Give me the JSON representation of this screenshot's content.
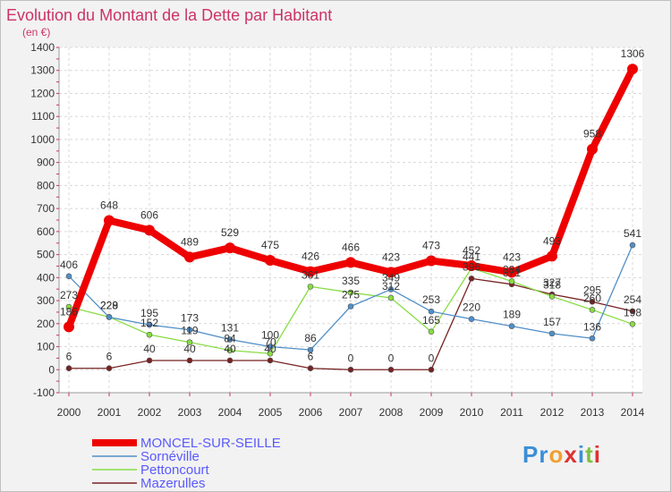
{
  "title": "Evolution du Montant de la Dette par Habitant",
  "subtitle": "(en €)",
  "watermark": "Proxiti",
  "chart_data": {
    "type": "line",
    "title": "Evolution du Montant de la Dette par Habitant",
    "subtitle": "(en €)",
    "xlabel": "",
    "ylabel": "",
    "x": [
      "2000",
      "2001",
      "2002",
      "2003",
      "2004",
      "2005",
      "2006",
      "2007",
      "2008",
      "2009",
      "2010",
      "2011",
      "2012",
      "2013",
      "2014"
    ],
    "y_ticks": [
      "1400",
      "1300",
      "1200",
      "1100",
      "1000",
      "900",
      "800",
      "700",
      "600",
      "500",
      "400",
      "300",
      "200",
      "100",
      "0",
      "-100"
    ],
    "ylim": [
      -100,
      1400
    ],
    "grid": true,
    "legend_position": "bottom-left",
    "series": [
      {
        "name": "MONCEL-SUR-SEILLE",
        "color": "#ee0000",
        "values": [
          186,
          648,
          606,
          489,
          529,
          475,
          426,
          466,
          423,
          473,
          452,
          423,
          493,
          958,
          1306
        ],
        "labels": [
          "186",
          "648",
          "606",
          "489",
          "529",
          "475",
          "426",
          "466",
          "423",
          "473",
          "452",
          "423",
          "493",
          "958",
          "1306"
        ]
      },
      {
        "name": "Sornéville",
        "color": "#4f8fc8",
        "values": [
          406,
          228,
          195,
          173,
          131,
          100,
          86,
          275,
          349,
          253,
          220,
          189,
          157,
          136,
          541
        ],
        "labels": [
          "406",
          "228",
          "195",
          "173",
          "131",
          "100",
          "86",
          "275",
          "349",
          "253",
          "220",
          "189",
          "157",
          "136",
          "541"
        ]
      },
      {
        "name": "Pettoncourt",
        "color": "#88dd44",
        "values": [
          273,
          229,
          152,
          119,
          84,
          70,
          361,
          335,
          312,
          165,
          441,
          384,
          318,
          260,
          198
        ],
        "labels": [
          "273",
          "229",
          "152",
          "119",
          "84",
          "70",
          "361",
          "335",
          "312",
          "165",
          "441",
          "384",
          "318",
          "260",
          "198"
        ]
      },
      {
        "name": "Mazerulles",
        "color": "#772222",
        "values": [
          6,
          6,
          40,
          40,
          40,
          40,
          6,
          0,
          0,
          0,
          396,
          371,
          327,
          295,
          254
        ],
        "labels": [
          "6",
          "6",
          "40",
          "40",
          "40",
          "40",
          "6",
          "0",
          "0",
          "0",
          "396",
          "371",
          "327",
          "295",
          "254"
        ]
      }
    ]
  }
}
